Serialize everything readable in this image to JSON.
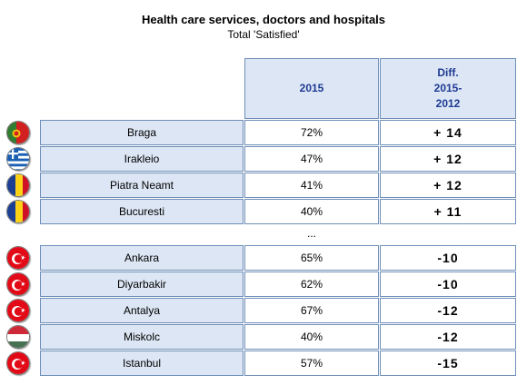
{
  "chart_data": {
    "type": "table",
    "title": "Health care services, doctors and hospitals",
    "subtitle": "Total 'Satisfied'",
    "columns": [
      "2015",
      "Diff.\n2015-\n2012"
    ],
    "separator": "...",
    "top_rows": [
      {
        "city": "Braga",
        "flag": "portugal-flag-icon",
        "value": "72%",
        "diff": "+ 14"
      },
      {
        "city": "Irakleio",
        "flag": "greece-flag-icon",
        "value": "47%",
        "diff": "+ 12"
      },
      {
        "city": "Piatra Neamt",
        "flag": "romania-flag-icon",
        "value": "41%",
        "diff": "+ 12"
      },
      {
        "city": "Bucuresti",
        "flag": "romania-flag-icon",
        "value": "40%",
        "diff": "+ 11"
      }
    ],
    "bottom_rows": [
      {
        "city": "Ankara",
        "flag": "turkey-flag-icon",
        "value": "65%",
        "diff": "-10"
      },
      {
        "city": "Diyarbakir",
        "flag": "turkey-flag-icon",
        "value": "62%",
        "diff": "-10"
      },
      {
        "city": "Antalya",
        "flag": "turkey-flag-icon",
        "value": "67%",
        "diff": "-12"
      },
      {
        "city": "Miskolc",
        "flag": "hungary-flag-icon",
        "value": "40%",
        "diff": "-12"
      },
      {
        "city": "Istanbul",
        "flag": "turkey-flag-icon",
        "value": "57%",
        "diff": "-15"
      }
    ],
    "colors": {
      "header_text": "#1f3a93",
      "city_fill": "#dce6f4",
      "border": "#6f8fb8"
    }
  }
}
